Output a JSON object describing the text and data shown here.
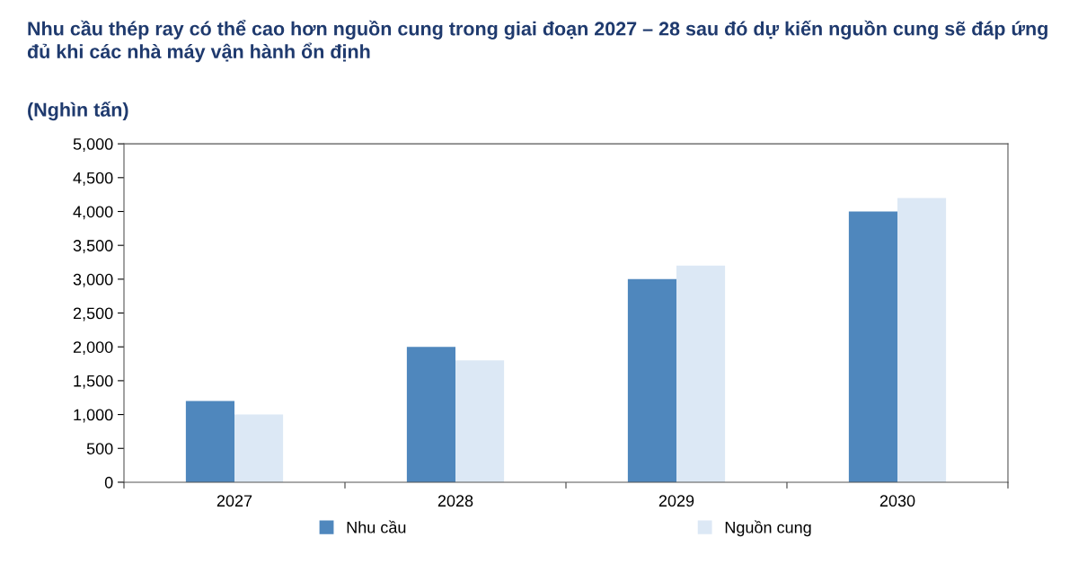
{
  "chart_data": {
    "type": "bar",
    "title": "Nhu cầu thép ray có thể cao hơn nguồn cung trong giai đoạn 2027 – 28 sau đó dự kiến nguồn cung sẽ đáp ứng đủ khi các nhà máy vận hành ổn định",
    "subtitle": "(Nghìn tấn)",
    "categories": [
      "2027",
      "2028",
      "2029",
      "2030"
    ],
    "series": [
      {
        "name": "Nhu cầu",
        "color": "#4f87bd",
        "values": [
          1200,
          2000,
          3000,
          4000
        ]
      },
      {
        "name": "Nguồn cung",
        "color": "#dce8f5",
        "values": [
          1000,
          1800,
          3200,
          4200
        ]
      }
    ],
    "ylim": [
      0,
      5000
    ],
    "yticks": [
      {
        "value": 0,
        "label": "0"
      },
      {
        "value": 500,
        "label": "500"
      },
      {
        "value": 1000,
        "label": "1,000"
      },
      {
        "value": 1500,
        "label": "1,500"
      },
      {
        "value": 2000,
        "label": "2,000"
      },
      {
        "value": 2500,
        "label": "2,500"
      },
      {
        "value": 3000,
        "label": "3,000"
      },
      {
        "value": 3500,
        "label": "3,500"
      },
      {
        "value": 4000,
        "label": "4,000"
      },
      {
        "value": 4500,
        "label": "4,500"
      },
      {
        "value": 5000,
        "label": "5,000"
      }
    ],
    "grid": false,
    "legend": "bottom"
  }
}
